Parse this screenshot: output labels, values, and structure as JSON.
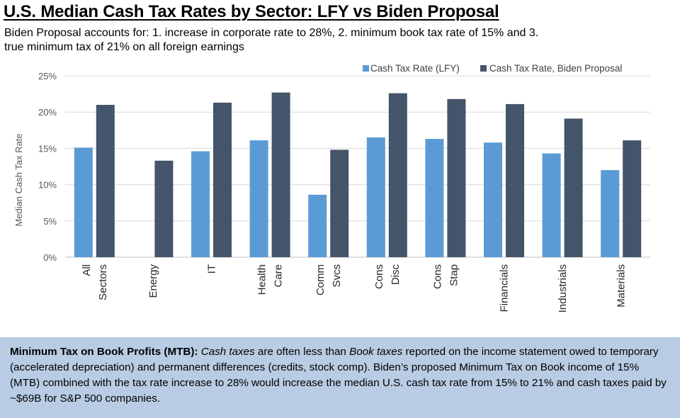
{
  "header": {
    "title": "U.S. Median Cash Tax Rates by Sector:  LFY vs Biden Proposal",
    "subtitle": "Biden Proposal accounts for: 1. increase in corporate rate to 28%, 2. minimum book tax rate of 15% and 3. true minimum tax of 21% on all foreign earnings"
  },
  "chart_data": {
    "type": "bar",
    "title": "",
    "xlabel": "",
    "ylabel": "Median  Cash Tax Rate",
    "ylim": [
      0,
      25
    ],
    "yticks": [
      0,
      5,
      10,
      15,
      20,
      25
    ],
    "ytick_labels": [
      "0%",
      "5%",
      "10%",
      "15%",
      "20%",
      "25%"
    ],
    "grid": true,
    "legend_position": "top-right",
    "categories": [
      [
        "All",
        "Sectors"
      ],
      [
        "Energy"
      ],
      [
        "IT"
      ],
      [
        "Health",
        "Care"
      ],
      [
        "Comm",
        "Svcs"
      ],
      [
        "Cons",
        "Disc"
      ],
      [
        "Cons",
        "Stap"
      ],
      [
        "Financials"
      ],
      [
        "Industrials"
      ],
      [
        "Materials"
      ]
    ],
    "series": [
      {
        "name": "Cash Tax Rate (LFY)",
        "color": "#5b9bd5",
        "values": [
          15.1,
          null,
          14.6,
          16.1,
          8.6,
          16.5,
          16.3,
          15.8,
          14.3,
          12.0
        ]
      },
      {
        "name": "Cash Tax Rate, Biden Proposal",
        "color": "#44546a",
        "values": [
          21.0,
          13.3,
          21.3,
          22.7,
          14.8,
          22.6,
          21.8,
          21.1,
          19.1,
          16.1
        ]
      }
    ]
  },
  "note": {
    "lead_bold": "Minimum Tax on Book Profits (MTB):",
    "seg1": " ",
    "italic1": "Cash taxes",
    "seg2": " are often less than ",
    "italic2": "Book taxes",
    "seg3": " reported on the income statement owed to temporary (accelerated depreciation) and permanent differences (credits, stock comp). Biden’s proposed Minimum Tax on Book income of 15% (MTB) combined with the tax rate increase to 28% would increase the median U.S. cash tax rate from 15% to 21% and cash taxes paid by ~$69B for S&P 500 companies."
  }
}
